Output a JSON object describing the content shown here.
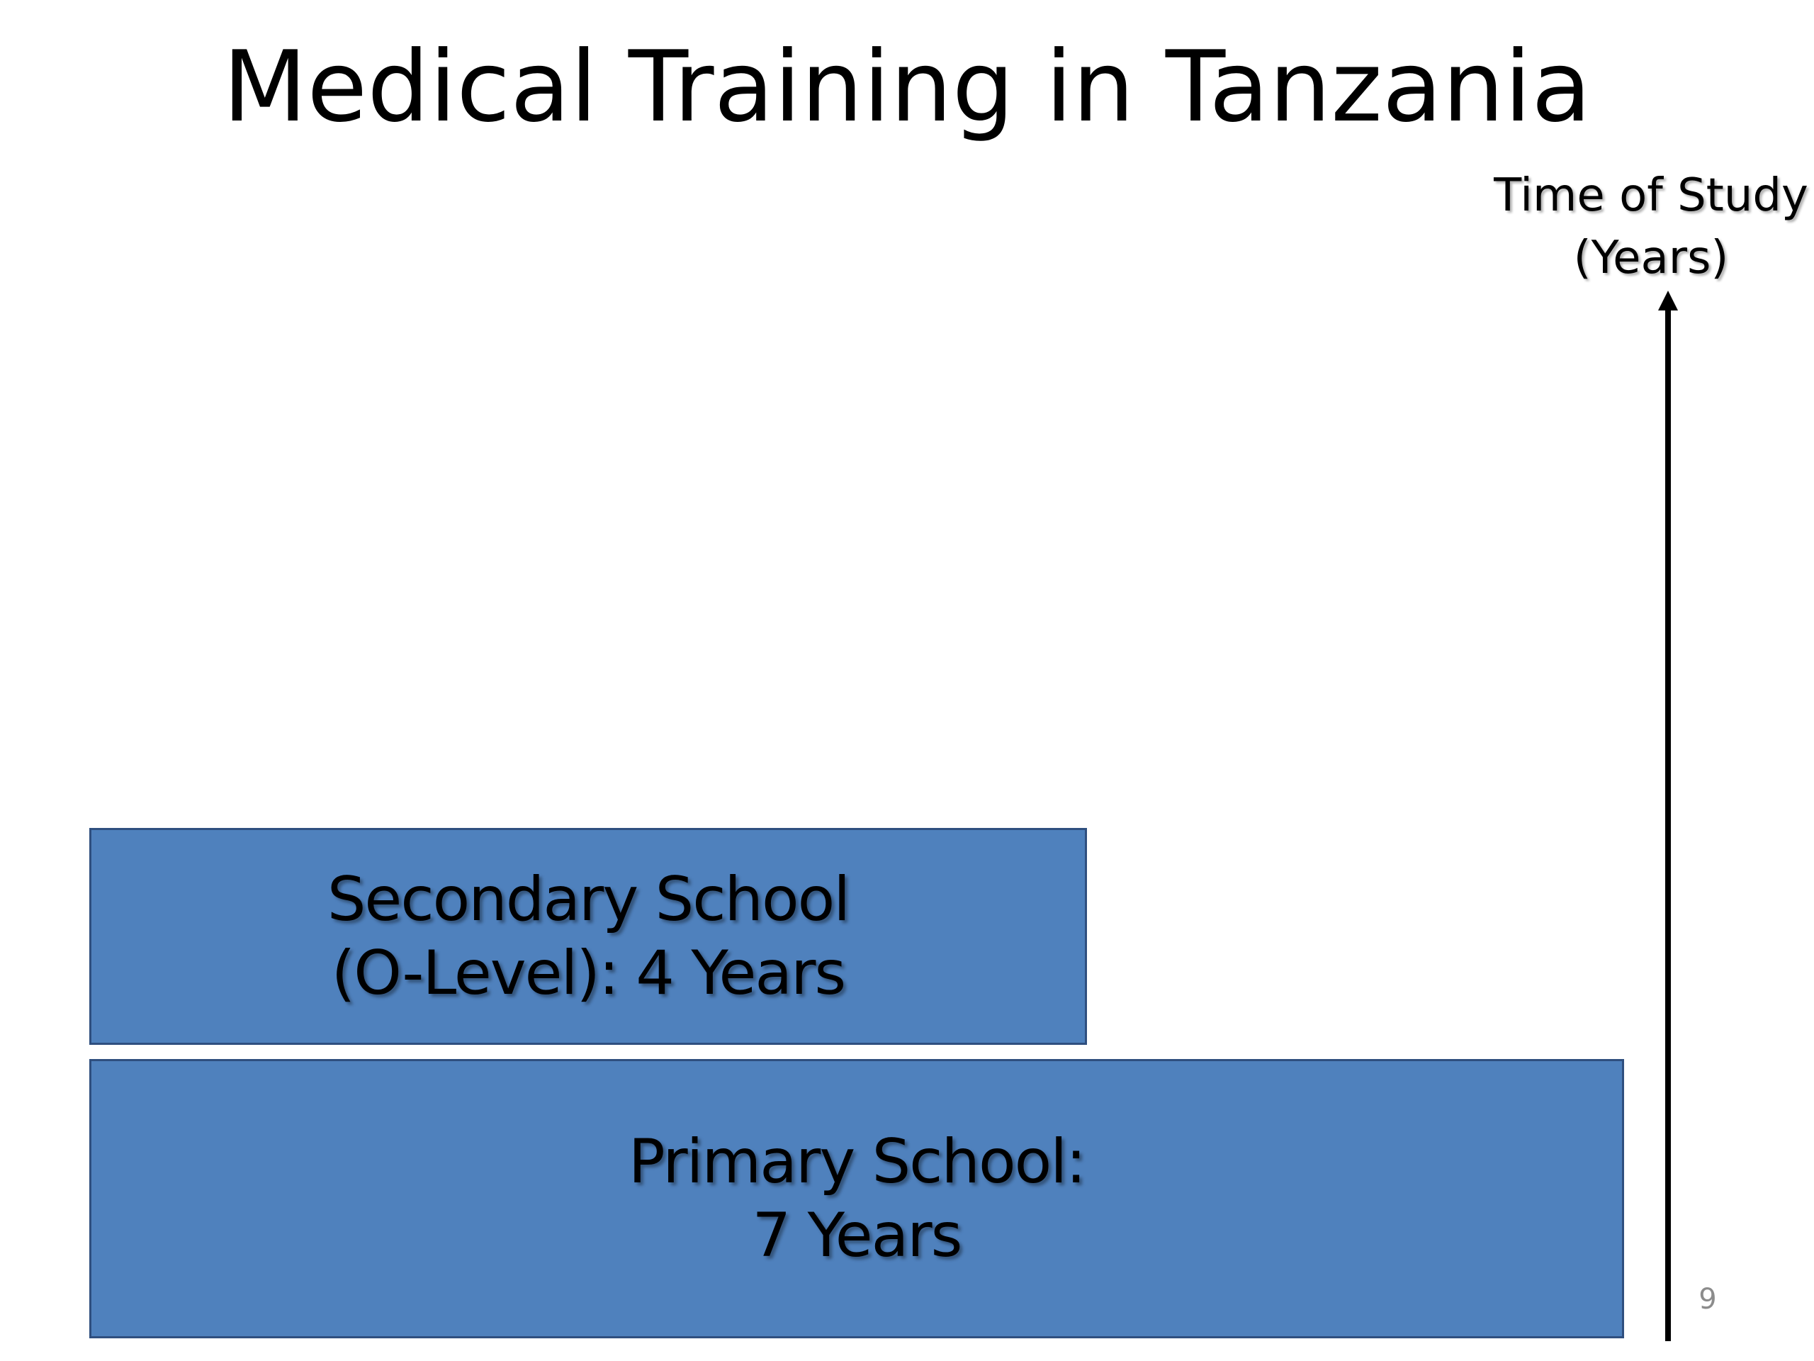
{
  "slide": {
    "title": "Medical Training in Tanzania",
    "axis_label": "Time of Study\n(Years)",
    "page_number": "9"
  },
  "blocks": [
    {
      "label": "Secondary School\n(O-Level): 4 Years",
      "years": 4
    },
    {
      "label": "Primary School:\n7 Years",
      "years": 7
    }
  ],
  "colors": {
    "block_fill": "#4f81bd",
    "block_border": "#2f4f7f",
    "arrow": "#000000"
  },
  "icons": {
    "axis_arrow": "arrow-up-icon"
  }
}
